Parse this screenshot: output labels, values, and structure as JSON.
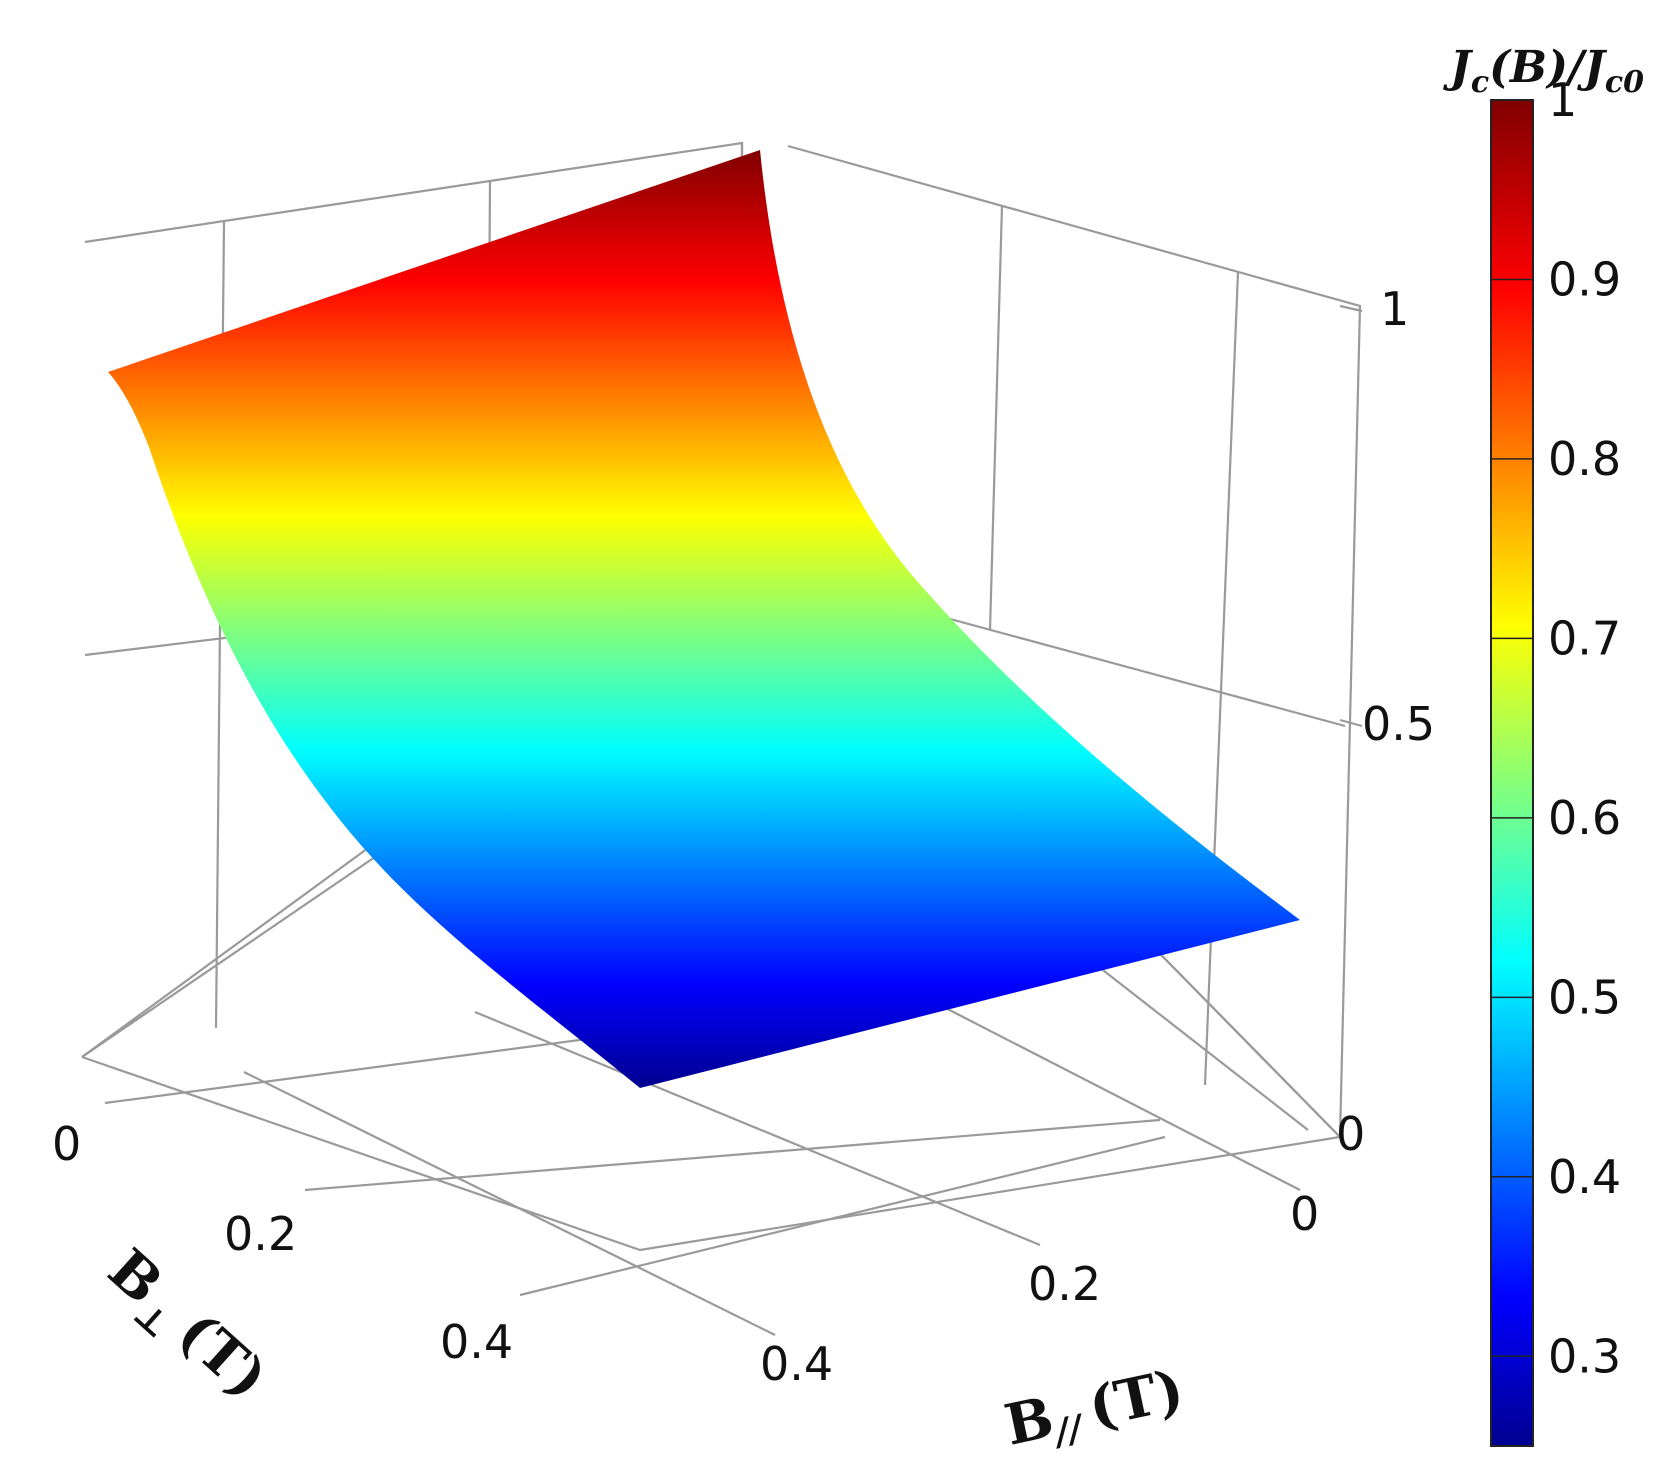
{
  "chart_data": {
    "type": "surface3d",
    "xlabel": "B",
    "xlabel_symbol": "⊥",
    "xlabel_unit": "(T)",
    "ylabel": "B",
    "ylabel_symbol": "//",
    "ylabel_unit": "(T)",
    "zlim": [
      0,
      1
    ],
    "x_ticks": [
      "0",
      "0.2",
      "0.4"
    ],
    "y_ticks": [
      "0",
      "0.2",
      "0.4"
    ],
    "z_ticks": [
      "0",
      "0.5",
      "1"
    ],
    "colorbar": {
      "title_main": "J",
      "title_sub_c": "c",
      "title_mid": "(B)/J",
      "title_sub_c0": "c0",
      "ticks": [
        "0.3",
        "0.4",
        "0.5",
        "0.6",
        "0.7",
        "0.8",
        "0.9",
        "1"
      ],
      "range": [
        0.25,
        1.0
      ],
      "colormap": "jet"
    },
    "surface": {
      "B_perp": [
        0,
        0.1,
        0.2,
        0.3,
        0.4,
        0.5
      ],
      "B_par": [
        0,
        0.1,
        0.2,
        0.3,
        0.4,
        0.5
      ],
      "Jc_norm": [
        [
          1.0,
          1.0,
          1.0,
          1.0,
          1.0,
          1.0
        ],
        [
          0.72,
          0.72,
          0.72,
          0.72,
          0.72,
          0.72
        ],
        [
          0.53,
          0.53,
          0.53,
          0.53,
          0.53,
          0.53
        ],
        [
          0.41,
          0.41,
          0.41,
          0.41,
          0.41,
          0.41
        ],
        [
          0.32,
          0.32,
          0.32,
          0.32,
          0.32,
          0.32
        ],
        [
          0.26,
          0.26,
          0.26,
          0.26,
          0.26,
          0.26
        ]
      ]
    },
    "grid": true,
    "legend": "colorbar-right"
  }
}
